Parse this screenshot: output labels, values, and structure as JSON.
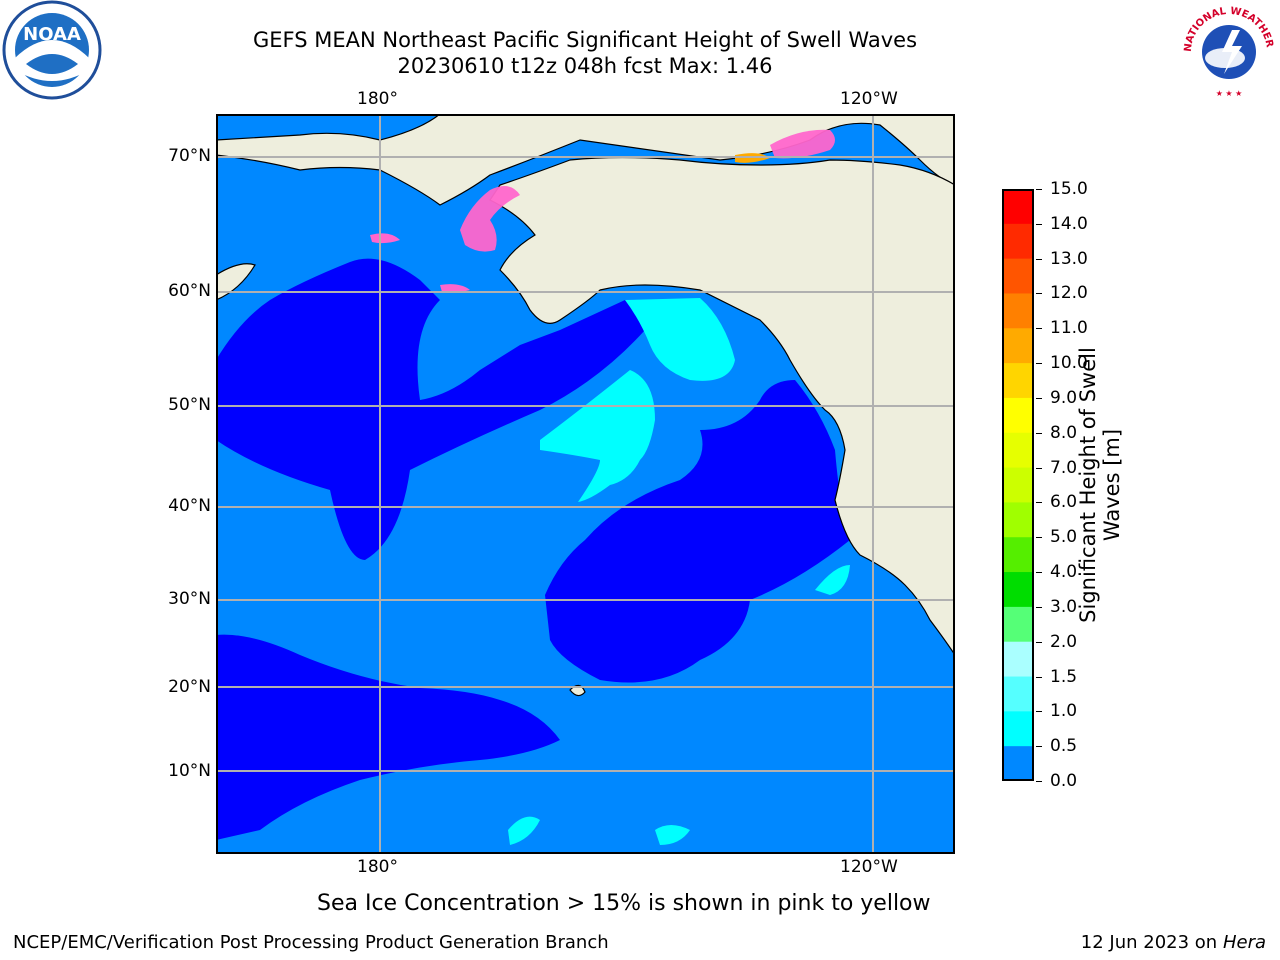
{
  "title_line1": "GEFS MEAN Northeast Pacific Significant Height of Swell Waves",
  "title_line2": "20230610 t12z 048h fcst   Max: 1.46",
  "lon_ticks": [
    "180°",
    "120°W"
  ],
  "lat_ticks": [
    "70°N",
    "60°N",
    "50°N",
    "40°N",
    "30°N",
    "20°N",
    "10°N"
  ],
  "colorbar": {
    "label_line1": "Significant Height of Swell",
    "label_line2": "Waves [m]",
    "ticks": [
      "15.0",
      "14.0",
      "13.0",
      "12.0",
      "11.0",
      "10.0",
      "9.0",
      "8.0",
      "7.0",
      "6.0",
      "5.0",
      "4.0",
      "3.0",
      "2.0",
      "1.5",
      "1.0",
      "0.5",
      "0.0"
    ],
    "colors": [
      "#ff0000",
      "#ff2a00",
      "#ff5500",
      "#ff8000",
      "#ffaa00",
      "#ffd500",
      "#ffff00",
      "#e6ff00",
      "#ccff00",
      "#a0ff00",
      "#55ee00",
      "#00dd00",
      "#55ff77",
      "#aaffff",
      "#55ffff",
      "#00ffff",
      "#0088ff",
      "#0000ff"
    ]
  },
  "ice_note": "Sea Ice Concentration > 15% is shown in pink to yellow",
  "footer_left": "NCEP/EMC/Verification Post Processing Product Generation Branch",
  "footer_right_date": "12 Jun 2023 on",
  "footer_right_machine": "Hera",
  "logos": {
    "left": "NOAA",
    "right": "NATIONAL WEATHER SERVICE"
  },
  "colors": {
    "ocean_low": "#0000ff",
    "ocean_mid": "#0088ff",
    "ocean_high": "#00ffff",
    "land": "#eeeedd",
    "ice": "#ff66cc",
    "grid": "#b0b0b0"
  }
}
